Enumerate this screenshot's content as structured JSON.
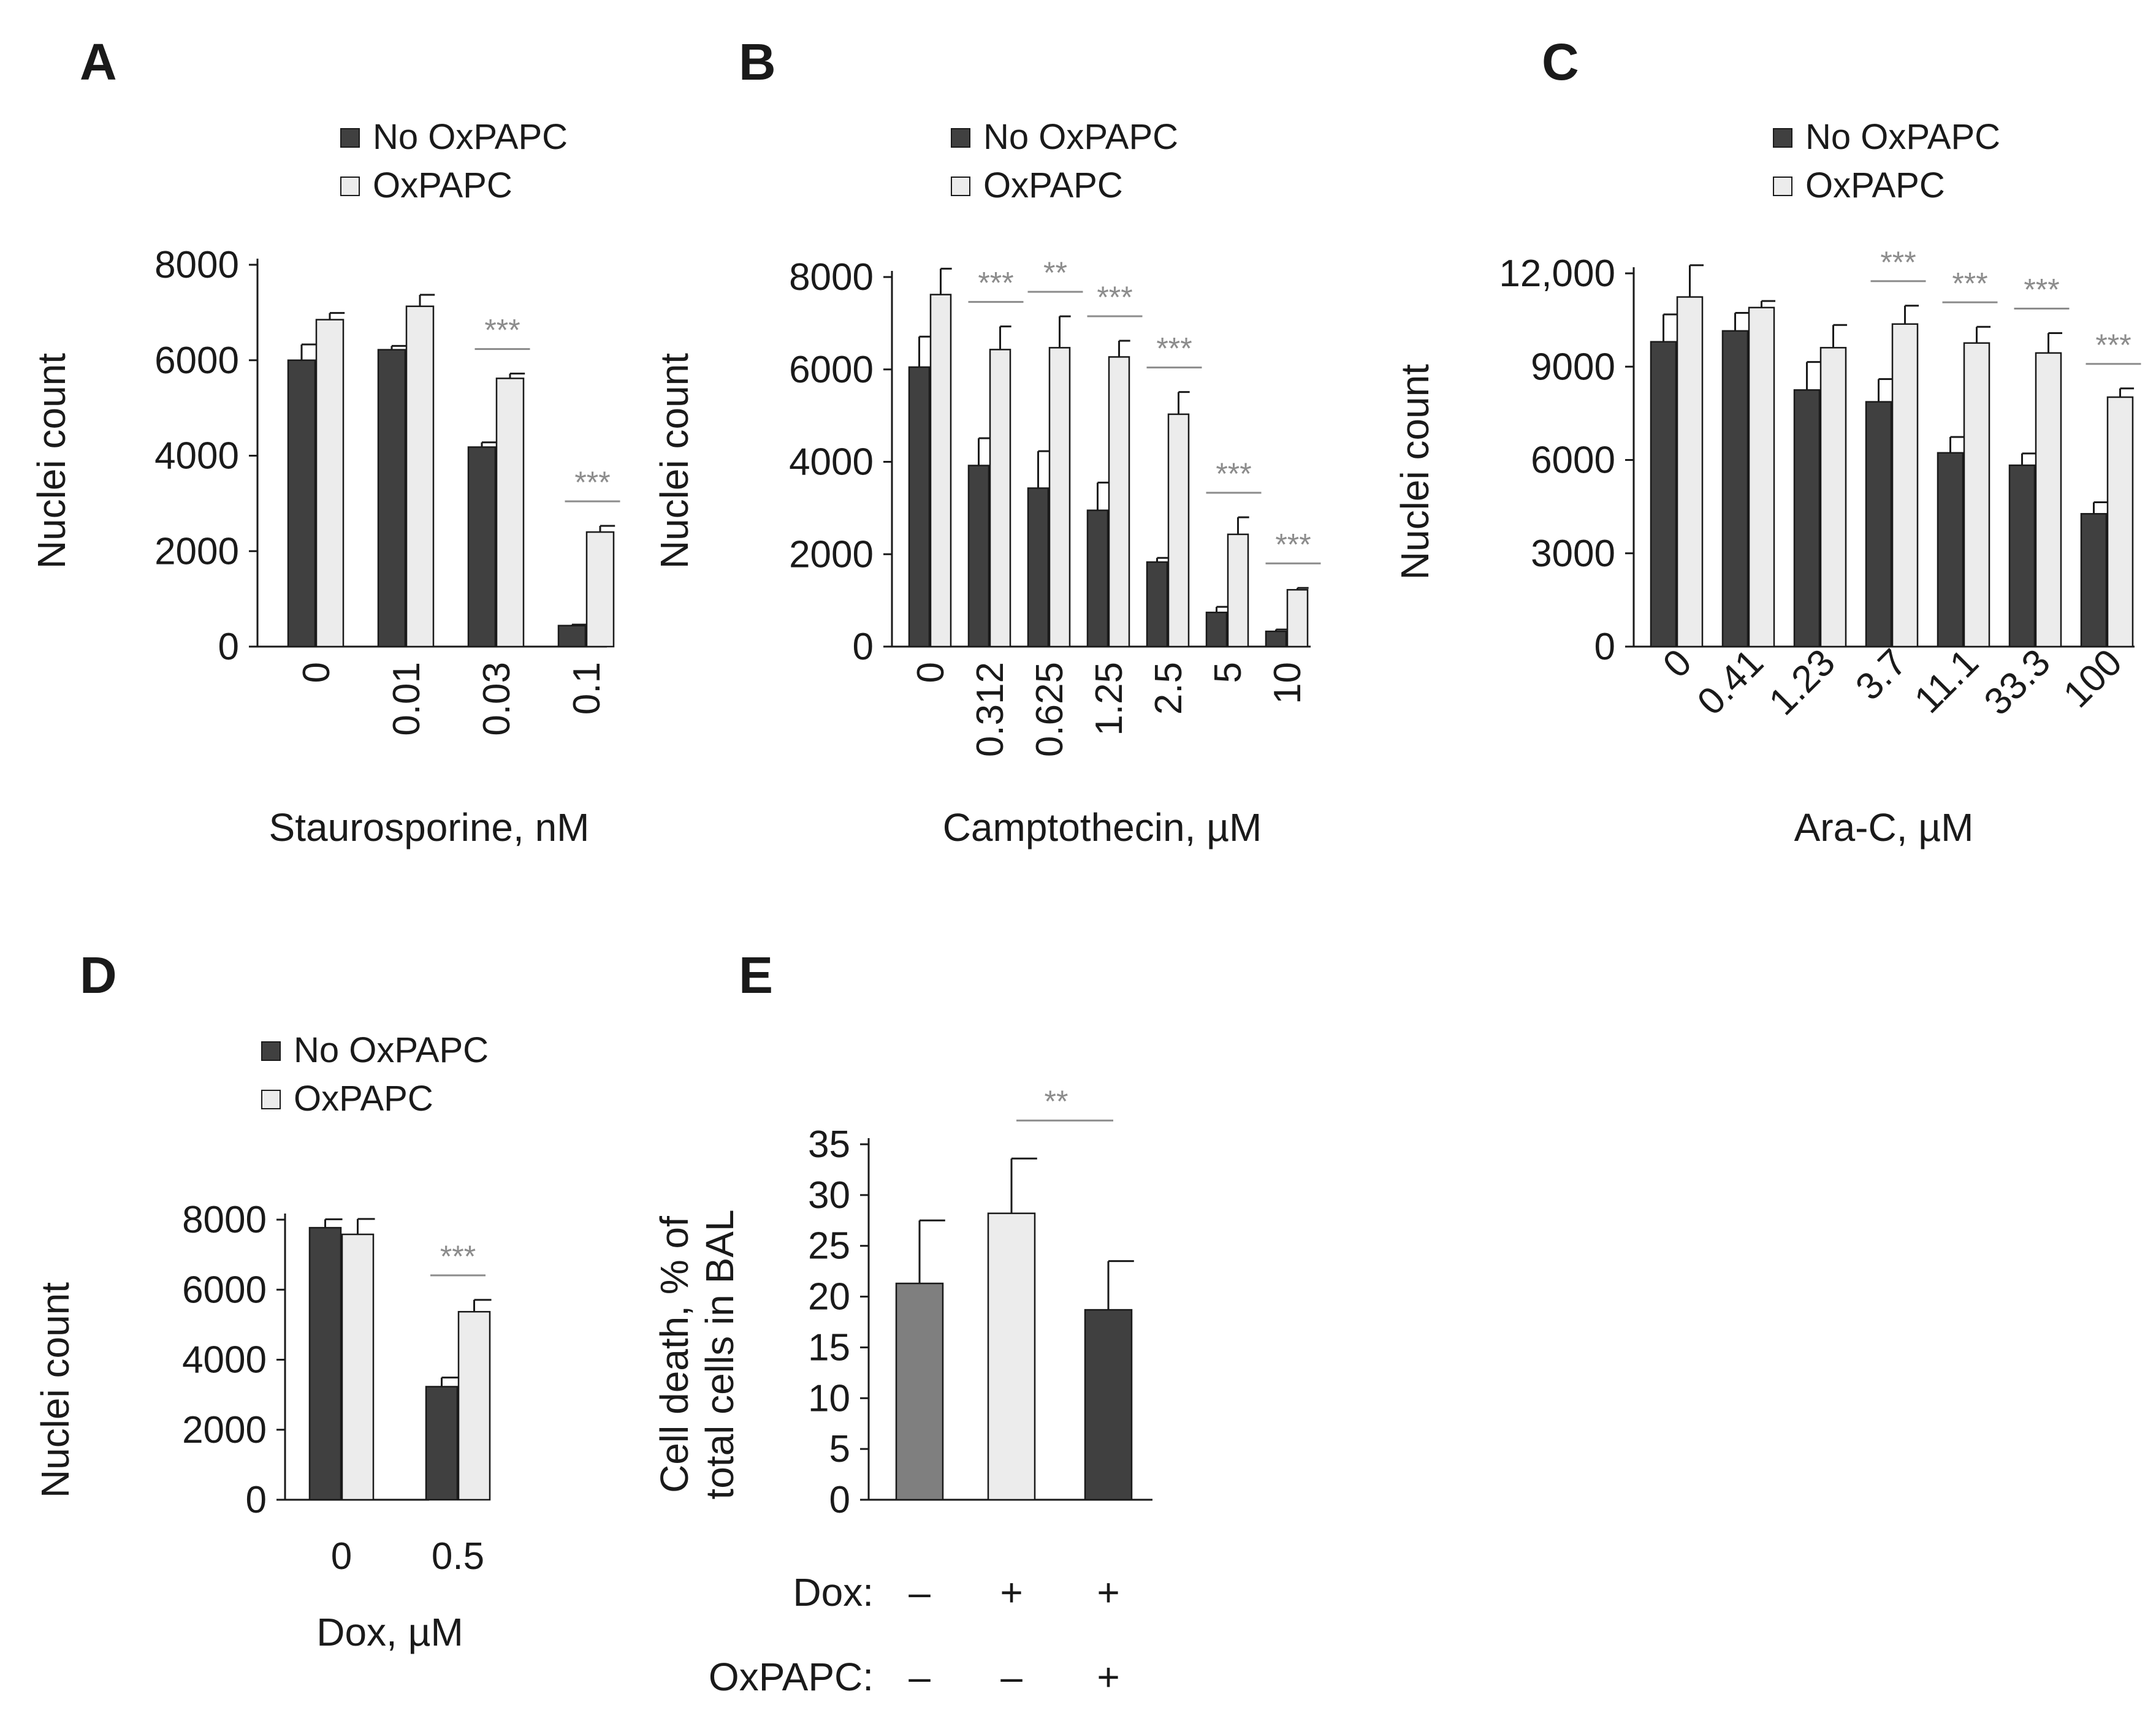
{
  "colors": {
    "dark_bar": "#404040",
    "light_bar": "#ececec",
    "mid_bar": "#7f7f7f",
    "axis": "#1a1a1a",
    "significance": "#8c8c8c"
  },
  "legend": {
    "no_oxpapc": "No OxPAPC",
    "oxpapc": "OxPAPC"
  },
  "chart_data": [
    {
      "panel": "A",
      "type": "bar",
      "ylabel": "Nuclei count",
      "xlabel": "Staurosporine, nM",
      "ylim": [
        0,
        8000
      ],
      "yticks": [
        "0",
        "2000",
        "4000",
        "6000",
        "8000"
      ],
      "categories": [
        "0",
        "0.01",
        "0.03",
        "0.1"
      ],
      "series": [
        {
          "name": "No OxPAPC",
          "values": [
            6000,
            6220,
            4180,
            440
          ],
          "errors": [
            330,
            80,
            100,
            20
          ]
        },
        {
          "name": "OxPAPC",
          "values": [
            6850,
            7130,
            5620,
            2400
          ],
          "errors": [
            140,
            240,
            100,
            130
          ]
        }
      ],
      "significance": [
        {
          "category_index": 2,
          "label": "***"
        },
        {
          "category_index": 3,
          "label": "***"
        }
      ]
    },
    {
      "panel": "B",
      "type": "bar",
      "ylabel": "Nuclei count",
      "xlabel": "Camptothecin, µM",
      "ylim": [
        0,
        8000
      ],
      "yticks": [
        "0",
        "2000",
        "4000",
        "6000",
        "8000"
      ],
      "categories": [
        "0",
        "0.312",
        "0.625",
        "1.25",
        "2.5",
        "5",
        "10"
      ],
      "series": [
        {
          "name": "No OxPAPC",
          "values": [
            6050,
            3920,
            3430,
            2950,
            1830,
            740,
            330
          ],
          "errors": [
            660,
            590,
            800,
            600,
            90,
            120,
            40
          ]
        },
        {
          "name": "OxPAPC",
          "values": [
            7620,
            6430,
            6470,
            6270,
            5030,
            2430,
            1230
          ],
          "errors": [
            560,
            500,
            680,
            350,
            480,
            370,
            40
          ]
        }
      ],
      "significance": [
        {
          "category_index": 1,
          "label": "***"
        },
        {
          "category_index": 2,
          "label": "**"
        },
        {
          "category_index": 3,
          "label": "***"
        },
        {
          "category_index": 4,
          "label": "***"
        },
        {
          "category_index": 5,
          "label": "***"
        },
        {
          "category_index": 6,
          "label": "***"
        }
      ]
    },
    {
      "panel": "C",
      "type": "bar",
      "ylabel": "Nuclei count",
      "xlabel": "Ara-C, µM",
      "ylim": [
        0,
        12000
      ],
      "yticks": [
        "0",
        "3000",
        "6000",
        "9000",
        "12,000"
      ],
      "categories": [
        "0",
        "0.41",
        "1.23",
        "3.7",
        "11.1",
        "33.3",
        "100"
      ],
      "series": [
        {
          "name": "No OxPAPC",
          "values": [
            9800,
            10150,
            8250,
            7870,
            6230,
            5830,
            4270
          ],
          "errors": [
            880,
            580,
            900,
            730,
            510,
            380,
            370
          ]
        },
        {
          "name": "OxPAPC",
          "values": [
            11240,
            10900,
            9610,
            10370,
            9760,
            9440,
            8020
          ],
          "errors": [
            1020,
            210,
            730,
            590,
            520,
            640,
            280
          ]
        }
      ],
      "significance": [
        {
          "category_index": 3,
          "label": "***"
        },
        {
          "category_index": 4,
          "label": "***"
        },
        {
          "category_index": 5,
          "label": "***"
        },
        {
          "category_index": 6,
          "label": "***"
        }
      ]
    },
    {
      "panel": "D",
      "type": "bar",
      "ylabel": "Nuclei count",
      "xlabel": "Dox, µM",
      "ylim": [
        0,
        8000
      ],
      "yticks": [
        "0",
        "2000",
        "4000",
        "6000",
        "8000"
      ],
      "categories": [
        "0",
        "0.5"
      ],
      "series": [
        {
          "name": "No OxPAPC",
          "values": [
            7770,
            3230
          ],
          "errors": [
            240,
            260
          ]
        },
        {
          "name": "OxPAPC",
          "values": [
            7580,
            5370
          ],
          "errors": [
            440,
            340
          ]
        }
      ],
      "significance": [
        {
          "category_index": 1,
          "label": "***"
        }
      ]
    },
    {
      "panel": "E",
      "type": "bar",
      "ylabel": "Cell death, % of total cells in BAL",
      "ylim": [
        0,
        35
      ],
      "yticks": [
        "0",
        "5",
        "10",
        "15",
        "20",
        "25",
        "30",
        "35"
      ],
      "values": [
        21.3,
        28.2,
        18.7
      ],
      "errors": [
        6.2,
        5.4,
        4.8
      ],
      "table_labels": {
        "dox": "Dox:",
        "oxpapc": "OxPAPC:"
      },
      "dox_signs": [
        "–",
        "+",
        "+"
      ],
      "oxpapc_signs": [
        "–",
        "–",
        "+"
      ],
      "significance": [
        {
          "from_index": 1,
          "to_index": 2,
          "label": "**"
        }
      ]
    }
  ]
}
